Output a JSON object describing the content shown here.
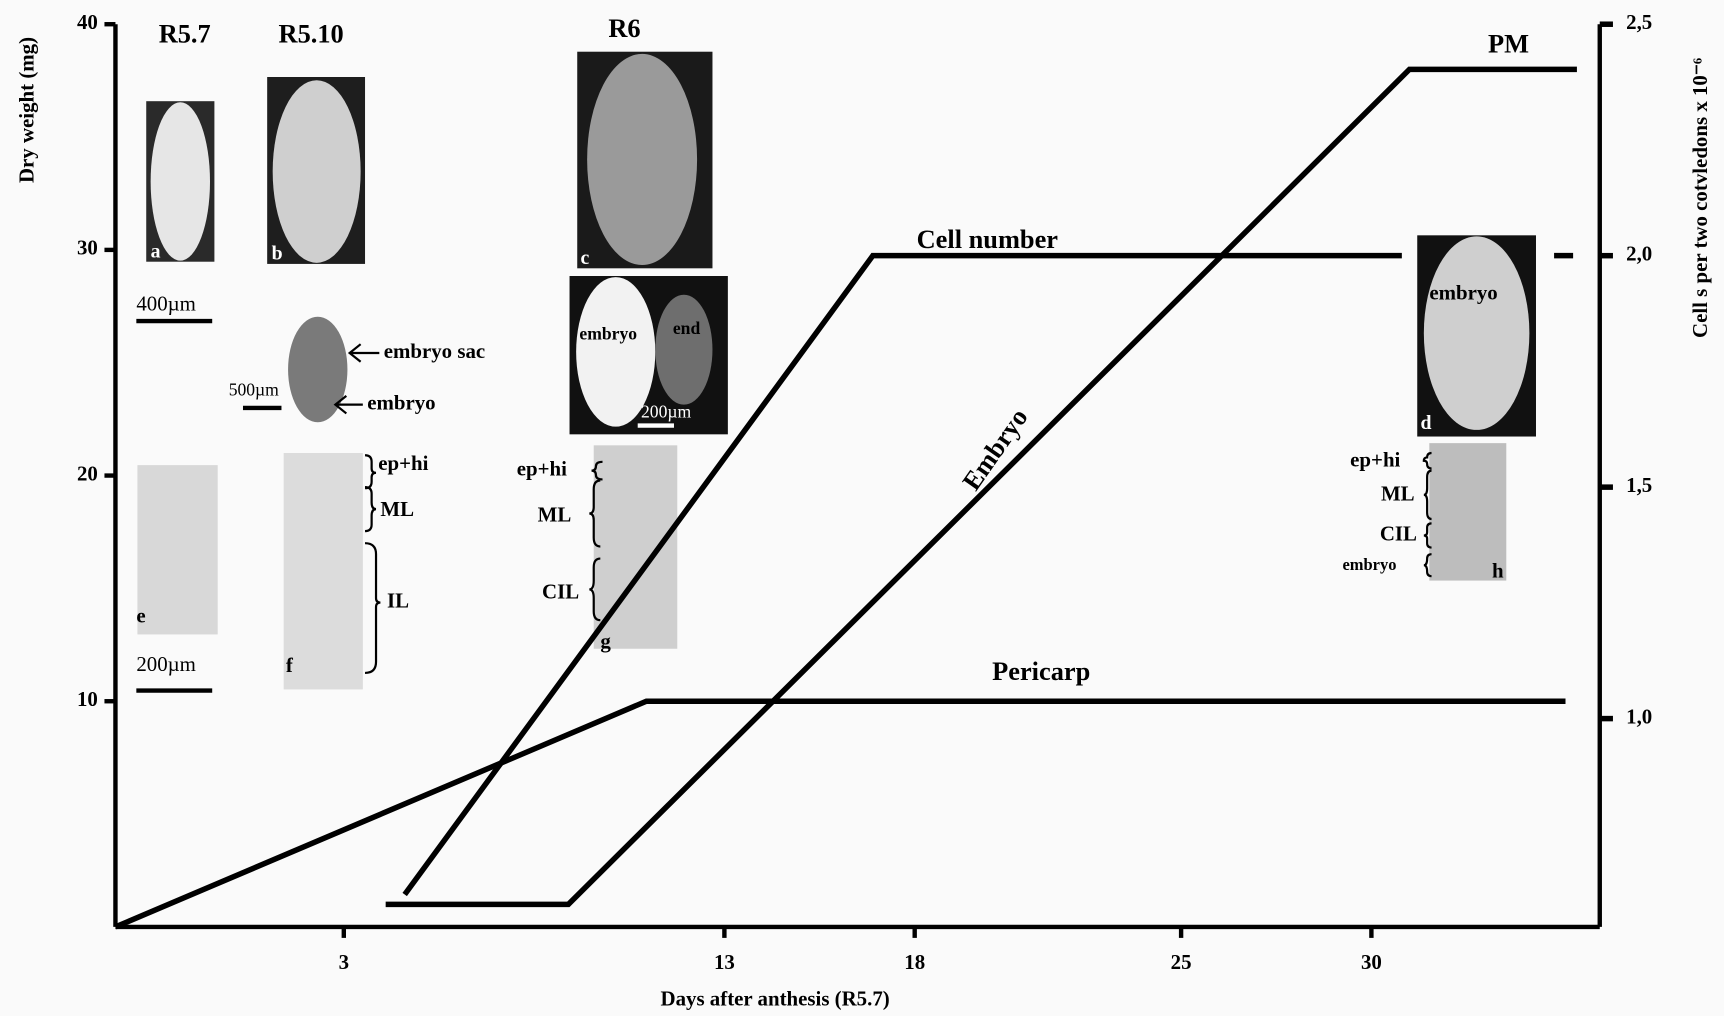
{
  "chart_data": {
    "type": "line",
    "x_label": "Days after anthesis (R5.7)",
    "y_label": "Dry weight (mg)",
    "y2_label": "Cell s per two cotvledons x 10⁻⁶",
    "xlim": [
      -3,
      36
    ],
    "xticks": [
      3,
      13,
      18,
      25,
      30
    ],
    "ylim": [
      0,
      40
    ],
    "yticks": [
      10,
      20,
      30,
      40
    ],
    "y2lim": [
      0.55,
      2.5
    ],
    "y2ticks": [
      {
        "value": 1.0,
        "label": "1,0"
      },
      {
        "value": 1.5,
        "label": "1,5"
      },
      {
        "value": 2.0,
        "label": "2,0"
      },
      {
        "value": 2.5,
        "label": "2,5"
      }
    ],
    "stages": [
      "R5.7",
      "R5.10",
      "R6",
      "PM"
    ],
    "series": [
      {
        "name": "Pericarp",
        "color": "#000000",
        "x": [
          -3,
          10.95,
          35.1
        ],
        "values": [
          0,
          10,
          10
        ]
      },
      {
        "name": "Embryo",
        "color": "#000000",
        "x": [
          4.1,
          8.9,
          31,
          35.4
        ],
        "values": [
          1,
          1,
          38,
          38
        ]
      },
      {
        "name": "Cell number",
        "color": "#000000",
        "axis": "y2",
        "x": [
          4.6,
          16.9,
          30.8,
          32,
          34.8,
          35.3
        ],
        "values": [
          0.62,
          2.0,
          2.0,
          null,
          2.0,
          2.0
        ]
      }
    ]
  },
  "annotations": [
    "a",
    "b",
    "c",
    "d",
    "e",
    "f",
    "g",
    "h",
    "400µm",
    "500µm",
    "200µm",
    "200µm",
    "embryo sac",
    "embryo",
    "embryo",
    "end",
    "embryo",
    "ep+hi",
    "ML",
    "IL",
    "ep+hi",
    "ML",
    "CIL",
    "ep+hi",
    "ML",
    "CIL",
    "embryo"
  ]
}
